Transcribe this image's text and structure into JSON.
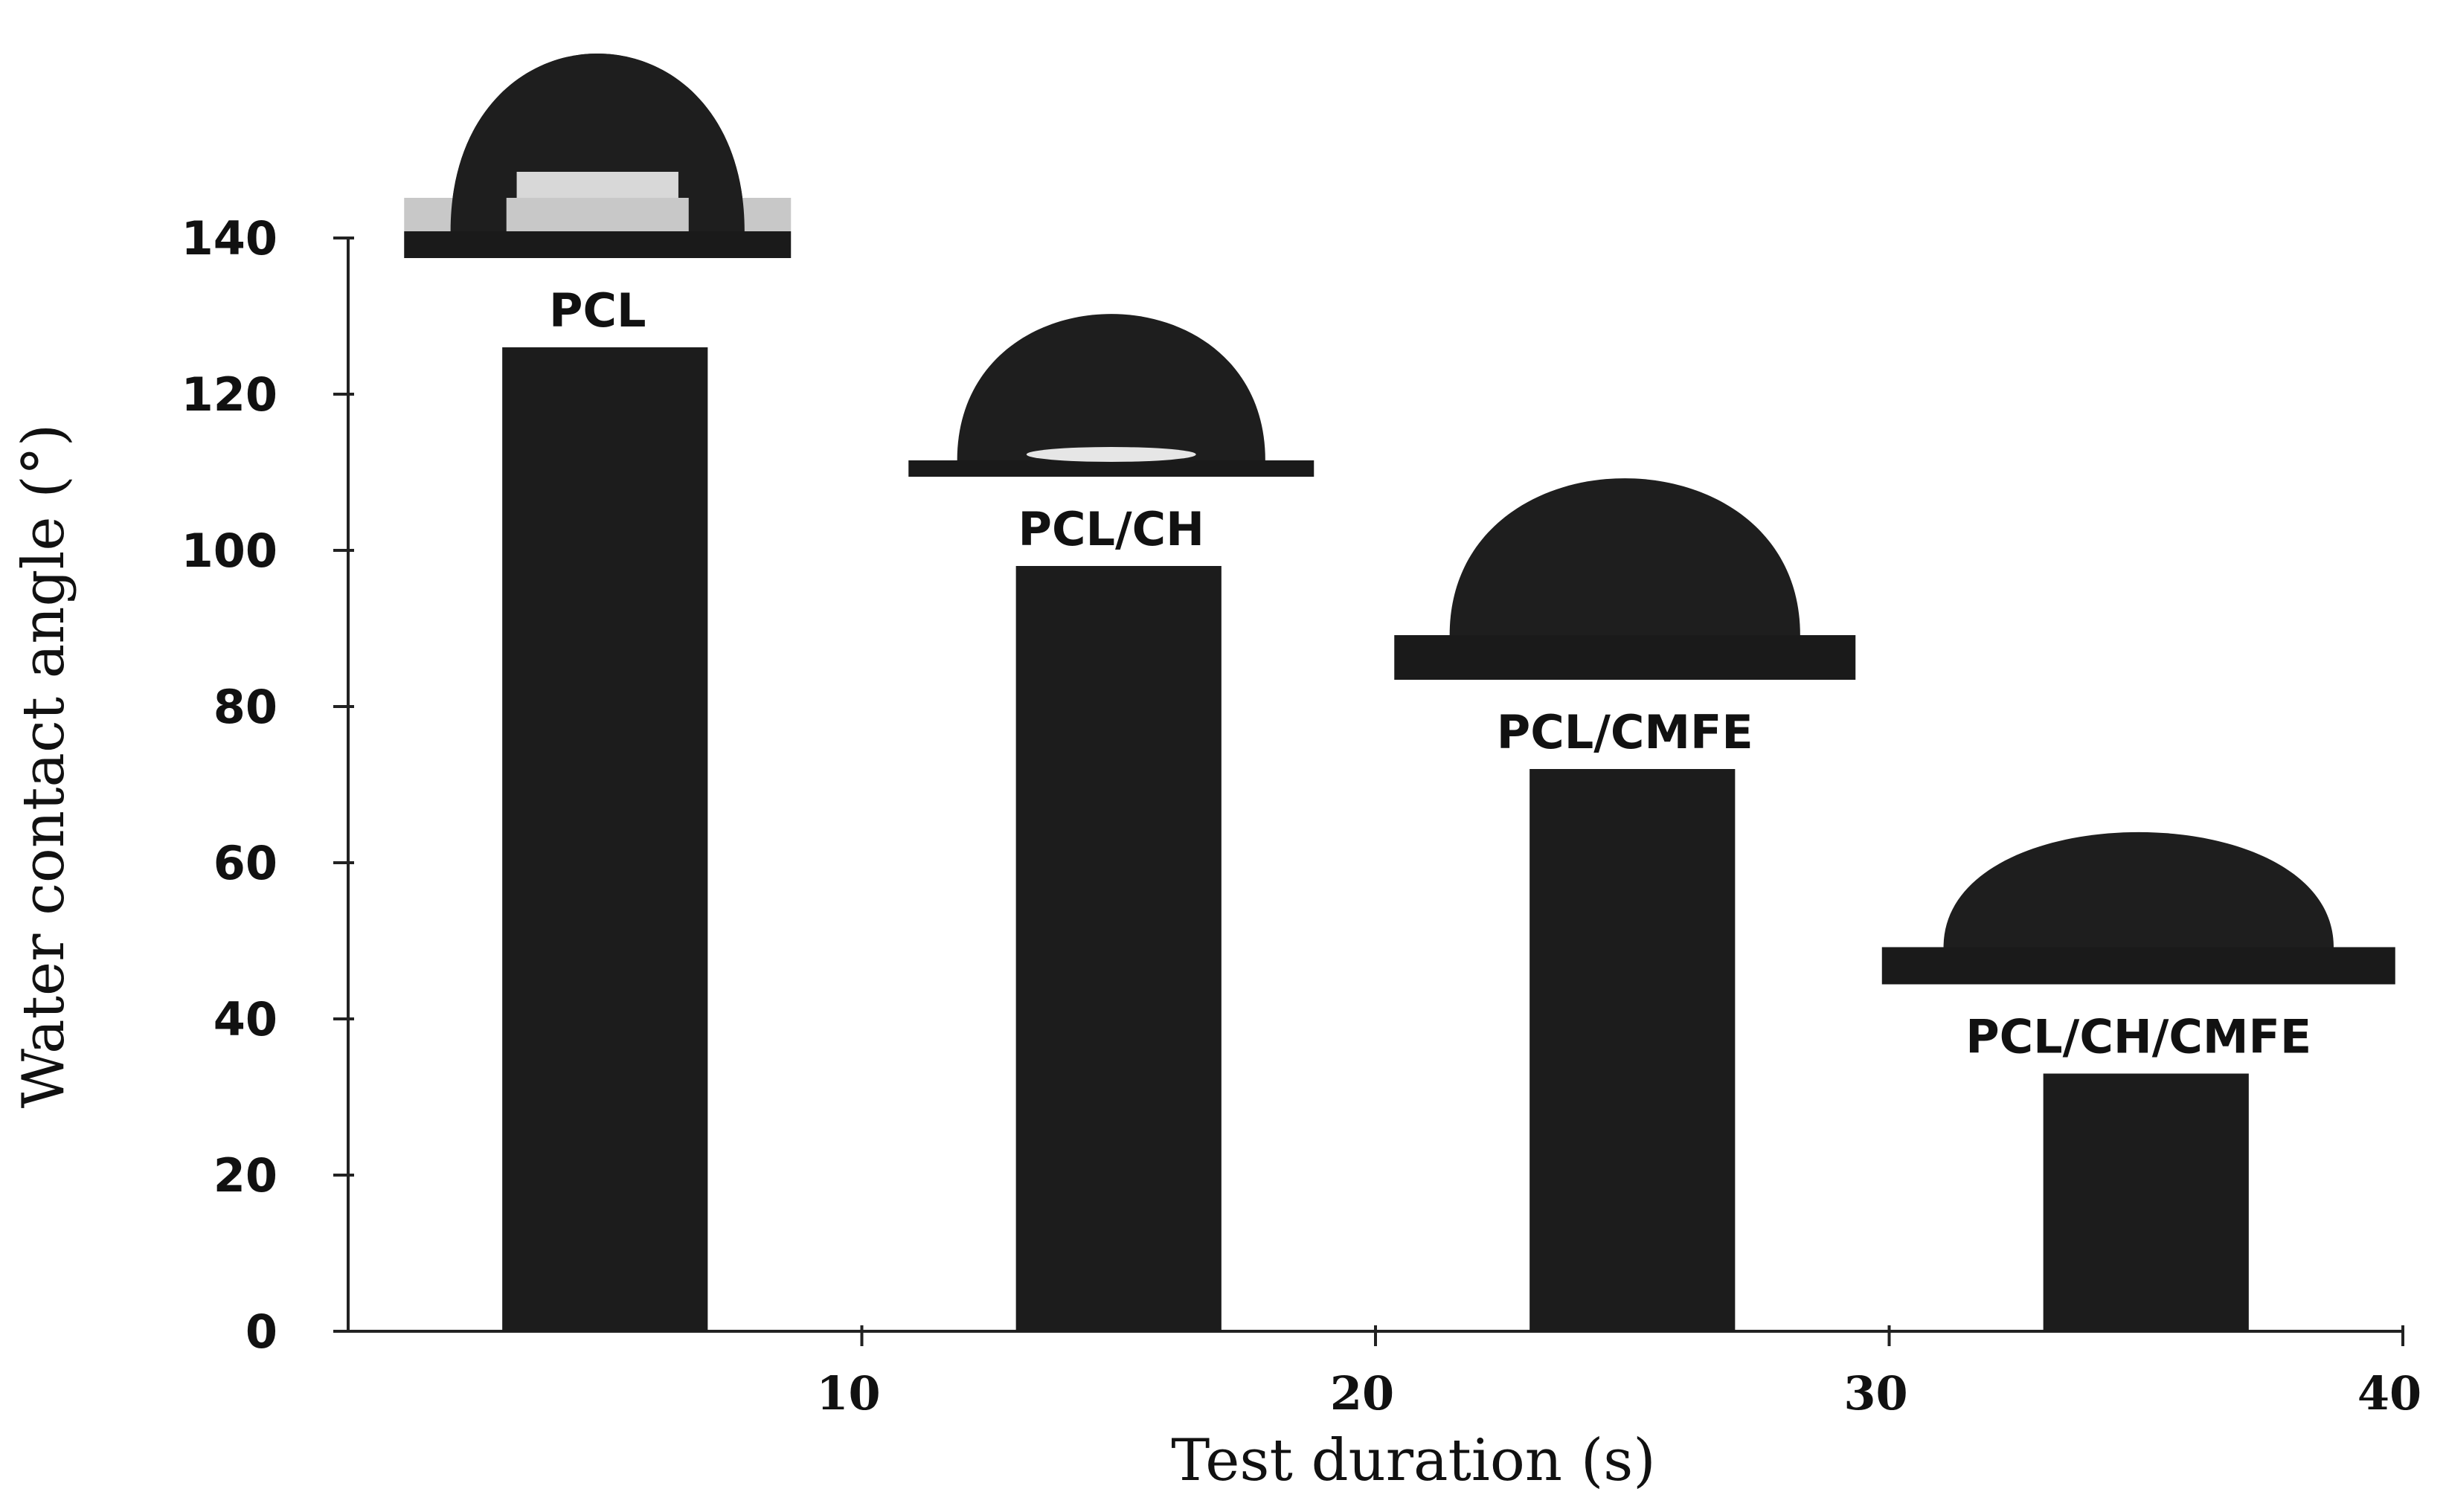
{
  "chart_data": {
    "type": "bar",
    "xlabel": "Test duration (s)",
    "ylabel": "Water contact angle (°)",
    "xlim": [
      0,
      40
    ],
    "ylim": [
      0,
      140
    ],
    "x_ticks": [
      10,
      20,
      30,
      40
    ],
    "y_ticks": [
      0,
      20,
      40,
      60,
      80,
      100,
      120,
      140
    ],
    "grid": false,
    "bar_color": "#1c1c1c",
    "series": [
      {
        "categories": [
          "PCL",
          "PCL/CH",
          "PCL/CMFE",
          "PCL/CH/CMFE"
        ],
        "x": [
          5,
          15,
          25,
          35
        ],
        "values": [
          126,
          98,
          72,
          33
        ]
      }
    ],
    "annotations": {
      "droplet_images": [
        "PCL",
        "PCL/CH",
        "PCL/CMFE",
        "PCL/CH/CMFE"
      ]
    }
  }
}
